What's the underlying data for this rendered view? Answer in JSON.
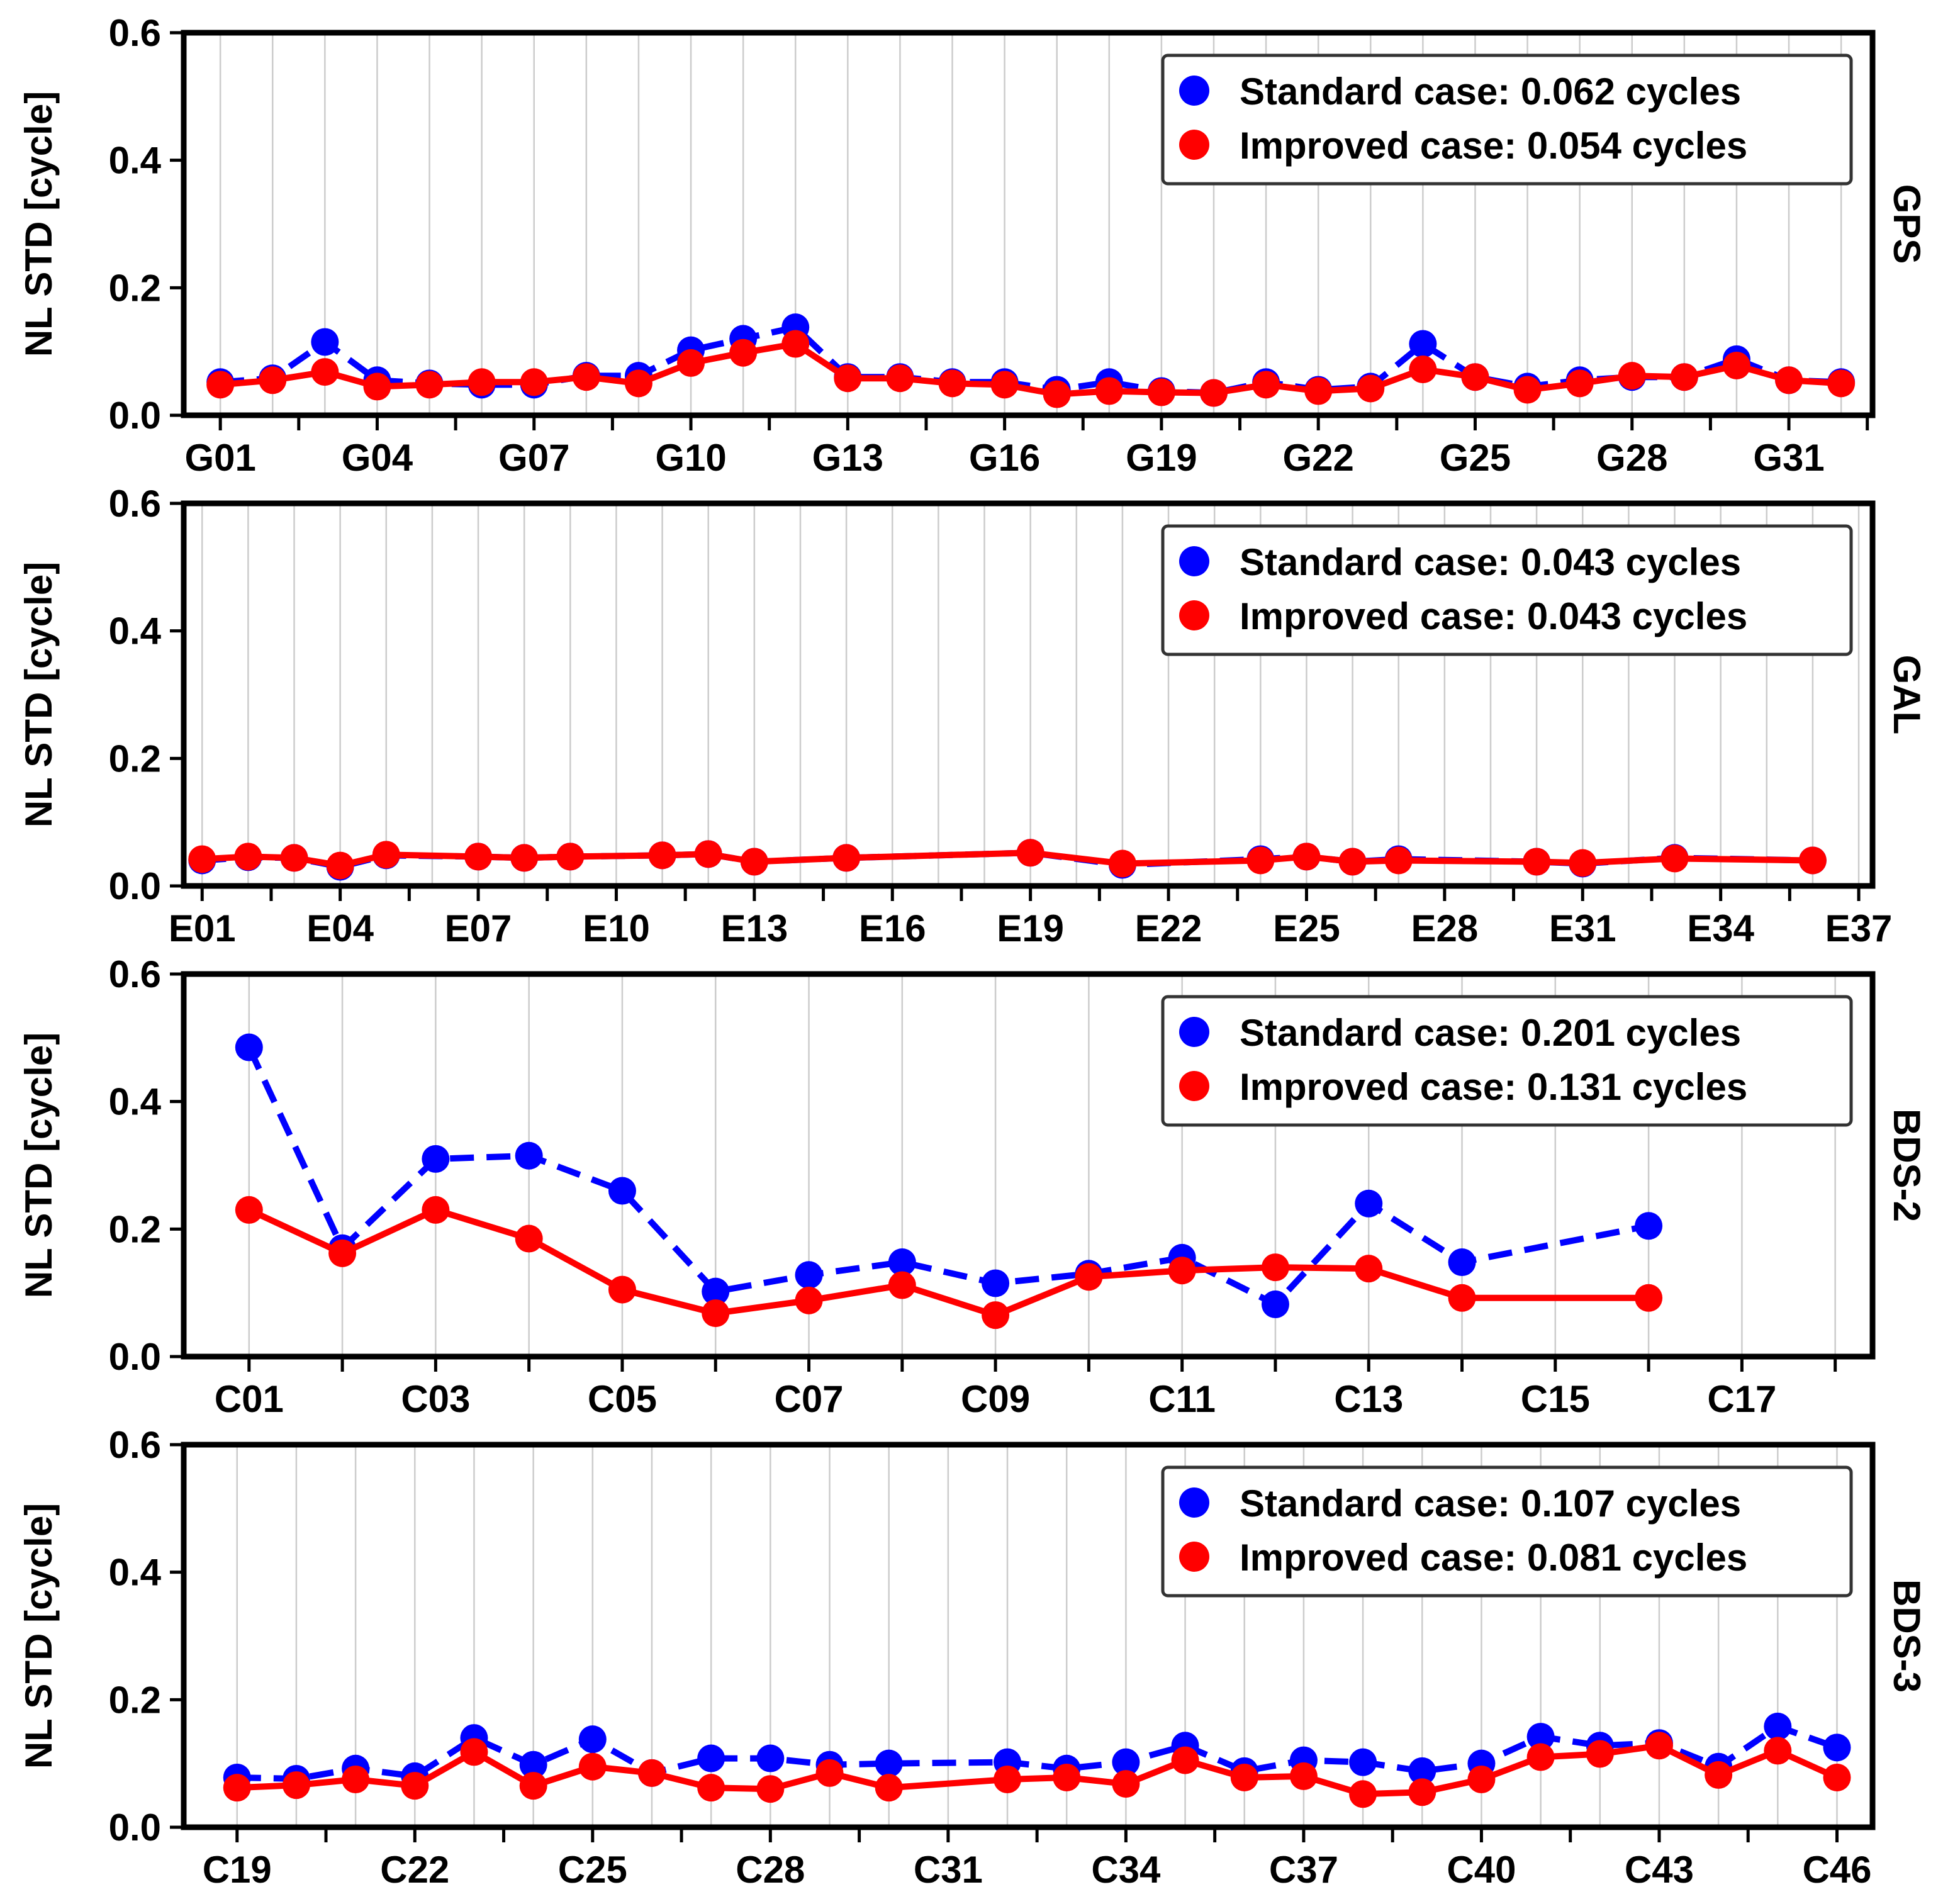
{
  "colors": {
    "standard": "#0000ff",
    "improved": "#ff0000",
    "grid": "#cccccc",
    "frame": "#000000"
  },
  "chart_data": [
    {
      "type": "line",
      "system": "GPS",
      "ylabel": "NL STD [cycle]",
      "ylim": [
        0,
        0.6
      ],
      "yticks": [
        "0.0",
        "0.2",
        "0.4",
        "0.6"
      ],
      "xlim": [
        0.3,
        32.6
      ],
      "xticks": [
        {
          "x": 1,
          "label": "G01"
        },
        {
          "x": 4,
          "label": "G04"
        },
        {
          "x": 7,
          "label": "G07"
        },
        {
          "x": 10,
          "label": "G10"
        },
        {
          "x": 13,
          "label": "G13"
        },
        {
          "x": 16,
          "label": "G16"
        },
        {
          "x": 19,
          "label": "G19"
        },
        {
          "x": 22,
          "label": "G22"
        },
        {
          "x": 25,
          "label": "G25"
        },
        {
          "x": 28,
          "label": "G28"
        },
        {
          "x": 31,
          "label": "G31"
        }
      ],
      "gridx": [
        1,
        2,
        3,
        4,
        5,
        6,
        7,
        8,
        9,
        10,
        11,
        12,
        13,
        14,
        15,
        16,
        17,
        18,
        19,
        20,
        21,
        22,
        23,
        24,
        25,
        26,
        27,
        28,
        29,
        30,
        31,
        32
      ],
      "legend": {
        "location": "upper right",
        "standard_label": "Standard case: 0.062 cycles",
        "improved_label": "Improved case: 0.054 cycles"
      },
      "series": [
        {
          "name": "Standard case",
          "style": "dashed",
          "x": [
            1,
            2,
            3,
            4,
            5,
            6,
            7,
            8,
            9,
            10,
            11,
            12,
            13,
            14,
            15,
            16,
            17,
            18,
            19,
            20,
            21,
            22,
            23,
            24,
            25,
            26,
            27,
            28,
            29,
            30,
            31,
            32
          ],
          "values": [
            0.052,
            0.058,
            0.115,
            0.055,
            0.05,
            0.048,
            0.048,
            0.062,
            0.062,
            0.102,
            0.12,
            0.138,
            0.06,
            0.06,
            0.052,
            0.052,
            0.04,
            0.052,
            0.038,
            0.035,
            0.052,
            0.04,
            0.045,
            0.112,
            0.06,
            0.045,
            0.055,
            0.06,
            0.06,
            0.088,
            0.055,
            0.052
          ]
        },
        {
          "name": "Improved case",
          "style": "solid",
          "x": [
            1,
            2,
            3,
            4,
            5,
            6,
            7,
            8,
            9,
            10,
            11,
            12,
            13,
            14,
            15,
            16,
            17,
            18,
            19,
            20,
            21,
            22,
            23,
            24,
            25,
            26,
            27,
            28,
            29,
            30,
            31,
            32
          ],
          "values": [
            0.048,
            0.055,
            0.068,
            0.045,
            0.048,
            0.052,
            0.052,
            0.06,
            0.05,
            0.082,
            0.098,
            0.112,
            0.058,
            0.058,
            0.05,
            0.048,
            0.033,
            0.038,
            0.036,
            0.035,
            0.048,
            0.038,
            0.042,
            0.072,
            0.06,
            0.04,
            0.05,
            0.062,
            0.06,
            0.078,
            0.055,
            0.05
          ]
        }
      ]
    },
    {
      "type": "line",
      "system": "GAL",
      "ylabel": "NL STD [cycle]",
      "ylim": [
        0,
        0.6
      ],
      "yticks": [
        "0.0",
        "0.2",
        "0.4",
        "0.6"
      ],
      "xlim": [
        0.6,
        37.3
      ],
      "xticks": [
        {
          "x": 1,
          "label": "E01"
        },
        {
          "x": 4,
          "label": "E04"
        },
        {
          "x": 7,
          "label": "E07"
        },
        {
          "x": 10,
          "label": "E10"
        },
        {
          "x": 13,
          "label": "E13"
        },
        {
          "x": 16,
          "label": "E16"
        },
        {
          "x": 19,
          "label": "E19"
        },
        {
          "x": 22,
          "label": "E22"
        },
        {
          "x": 25,
          "label": "E25"
        },
        {
          "x": 28,
          "label": "E28"
        },
        {
          "x": 31,
          "label": "E31"
        },
        {
          "x": 34,
          "label": "E34"
        },
        {
          "x": 37,
          "label": "E37"
        }
      ],
      "gridx": [
        1,
        2,
        3,
        4,
        5,
        6,
        7,
        8,
        9,
        10,
        11,
        12,
        13,
        14,
        15,
        16,
        17,
        18,
        19,
        20,
        21,
        22,
        23,
        24,
        25,
        26,
        27,
        28,
        29,
        30,
        31,
        32,
        33,
        34,
        35,
        36,
        37
      ],
      "legend": {
        "location": "upper right",
        "standard_label": "Standard case: 0.043 cycles",
        "improved_label": "Improved case: 0.043 cycles"
      },
      "series": [
        {
          "name": "Standard case",
          "style": "dashed",
          "x": [
            1,
            2,
            3,
            4,
            5,
            7,
            8,
            9,
            11,
            12,
            13,
            15,
            19,
            21,
            24,
            25,
            26,
            27,
            30,
            31,
            33,
            36
          ],
          "values": [
            0.04,
            0.045,
            0.044,
            0.03,
            0.048,
            0.046,
            0.044,
            0.046,
            0.048,
            0.05,
            0.038,
            0.044,
            0.052,
            0.033,
            0.042,
            0.046,
            0.038,
            0.042,
            0.038,
            0.035,
            0.044,
            0.04
          ]
        },
        {
          "name": "Improved case",
          "style": "solid",
          "x": [
            1,
            2,
            3,
            4,
            5,
            7,
            8,
            9,
            11,
            12,
            13,
            15,
            19,
            21,
            24,
            25,
            26,
            27,
            30,
            31,
            33,
            36
          ],
          "values": [
            0.042,
            0.046,
            0.044,
            0.032,
            0.049,
            0.046,
            0.044,
            0.046,
            0.048,
            0.05,
            0.038,
            0.044,
            0.052,
            0.035,
            0.04,
            0.046,
            0.038,
            0.04,
            0.038,
            0.036,
            0.043,
            0.04
          ]
        }
      ]
    },
    {
      "type": "line",
      "system": "BDS-2",
      "ylabel": "NL STD [cycle]",
      "ylim": [
        0,
        0.6
      ],
      "yticks": [
        "0.0",
        "0.2",
        "0.4",
        "0.6"
      ],
      "xlim": [
        0.3,
        18.4
      ],
      "xticks": [
        {
          "x": 1,
          "label": "C01"
        },
        {
          "x": 3,
          "label": "C03"
        },
        {
          "x": 5,
          "label": "C05"
        },
        {
          "x": 7,
          "label": "C07"
        },
        {
          "x": 9,
          "label": "C09"
        },
        {
          "x": 11,
          "label": "C11"
        },
        {
          "x": 13,
          "label": "C13"
        },
        {
          "x": 15,
          "label": "C15"
        },
        {
          "x": 17,
          "label": "C17"
        }
      ],
      "gridx": [
        1,
        2,
        3,
        4,
        5,
        6,
        7,
        8,
        9,
        10,
        11,
        12,
        13,
        14,
        15,
        16,
        17,
        18
      ],
      "legend": {
        "location": "upper right",
        "standard_label": "Standard case: 0.201 cycles",
        "improved_label": "Improved case: 0.131 cycles"
      },
      "series": [
        {
          "name": "Standard case",
          "style": "dashed",
          "x": [
            1,
            2,
            3,
            4,
            5,
            6,
            7,
            8,
            9,
            10,
            11,
            12,
            13,
            14,
            16
          ],
          "values": [
            0.485,
            0.17,
            0.31,
            0.315,
            0.26,
            0.102,
            0.128,
            0.148,
            0.115,
            0.13,
            0.155,
            0.082,
            0.24,
            0.148,
            0.205
          ]
        },
        {
          "name": "Improved case",
          "style": "solid",
          "x": [
            1,
            2,
            3,
            4,
            5,
            6,
            7,
            8,
            9,
            10,
            11,
            12,
            13,
            14,
            16
          ],
          "values": [
            0.23,
            0.162,
            0.23,
            0.185,
            0.105,
            0.068,
            0.088,
            0.112,
            0.065,
            0.125,
            0.135,
            0.14,
            0.138,
            0.092,
            0.092
          ]
        }
      ]
    },
    {
      "type": "line",
      "system": "BDS-3",
      "ylabel": "NL STD [cycle]",
      "ylim": [
        0,
        0.6
      ],
      "yticks": [
        "0.0",
        "0.2",
        "0.4",
        "0.6"
      ],
      "xlim": [
        18.1,
        46.6
      ],
      "xticks": [
        {
          "x": 19,
          "label": "C19"
        },
        {
          "x": 22,
          "label": "C22"
        },
        {
          "x": 25,
          "label": "C25"
        },
        {
          "x": 28,
          "label": "C28"
        },
        {
          "x": 31,
          "label": "C31"
        },
        {
          "x": 34,
          "label": "C34"
        },
        {
          "x": 37,
          "label": "C37"
        },
        {
          "x": 40,
          "label": "C40"
        },
        {
          "x": 43,
          "label": "C43"
        },
        {
          "x": 46,
          "label": "C46"
        }
      ],
      "gridx": [
        19,
        20,
        21,
        22,
        23,
        24,
        25,
        26,
        27,
        28,
        29,
        30,
        31,
        32,
        33,
        34,
        35,
        36,
        37,
        38,
        39,
        40,
        41,
        42,
        43,
        44,
        45,
        46
      ],
      "legend": {
        "location": "upper right",
        "standard_label": "Standard case: 0.107 cycles",
        "improved_label": "Improved case: 0.081 cycles"
      },
      "series": [
        {
          "name": "Standard case",
          "style": "dashed",
          "x": [
            19,
            20,
            21,
            22,
            23,
            24,
            25,
            26,
            27,
            28,
            29,
            30,
            32,
            33,
            34,
            35,
            36,
            37,
            38,
            39,
            40,
            41,
            42,
            43,
            44,
            45,
            46
          ],
          "values": [
            0.078,
            0.076,
            0.092,
            0.08,
            0.14,
            0.098,
            0.138,
            0.085,
            0.108,
            0.108,
            0.098,
            0.1,
            0.102,
            0.092,
            0.102,
            0.128,
            0.088,
            0.105,
            0.102,
            0.088,
            0.1,
            0.142,
            0.128,
            0.132,
            0.095,
            0.158,
            0.125
          ]
        },
        {
          "name": "Improved case",
          "style": "solid",
          "x": [
            19,
            20,
            21,
            22,
            23,
            24,
            25,
            26,
            27,
            28,
            29,
            30,
            32,
            33,
            34,
            35,
            36,
            37,
            38,
            39,
            40,
            41,
            42,
            43,
            44,
            45,
            46
          ],
          "values": [
            0.062,
            0.066,
            0.075,
            0.065,
            0.118,
            0.065,
            0.095,
            0.085,
            0.062,
            0.06,
            0.085,
            0.062,
            0.075,
            0.078,
            0.068,
            0.105,
            0.078,
            0.08,
            0.052,
            0.055,
            0.075,
            0.11,
            0.115,
            0.128,
            0.082,
            0.12,
            0.078
          ]
        }
      ]
    }
  ]
}
